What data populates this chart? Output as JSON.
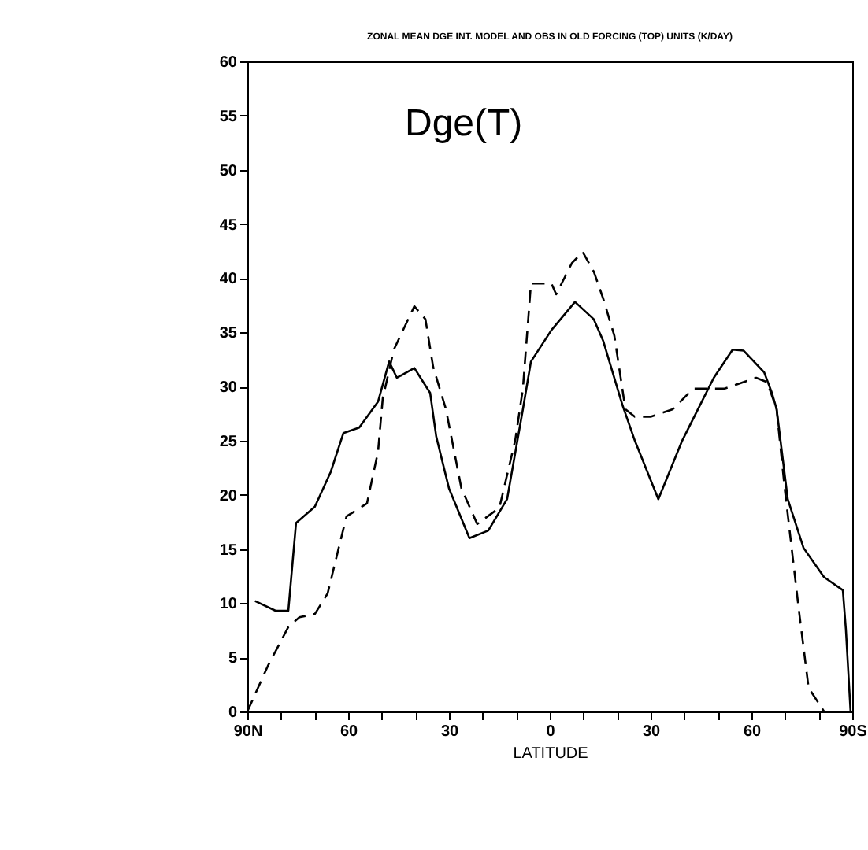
{
  "chart_data": {
    "type": "line",
    "title": "ZONAL MEAN DGE INT. MODEL AND OBS IN OLD FORCING (TOP) UNITS (K/DAY)",
    "xlabel": "LATITUDE",
    "annotations": [
      "Dge(T)"
    ],
    "xlim": [
      -90,
      90
    ],
    "ylim": [
      0,
      60
    ],
    "xticks": [
      {
        "value": -90,
        "label": "90N"
      },
      {
        "value": -80,
        "label": null
      },
      {
        "value": -70,
        "label": null
      },
      {
        "value": -60,
        "label": "60"
      },
      {
        "value": -50,
        "label": null
      },
      {
        "value": -40,
        "label": null
      },
      {
        "value": -30,
        "label": "30"
      },
      {
        "value": -20,
        "label": null
      },
      {
        "value": -10,
        "label": null
      },
      0,
      {
        "value": 10,
        "label": null
      },
      {
        "value": 20,
        "label": null
      },
      {
        "value": 30,
        "label": "30"
      },
      {
        "value": 40,
        "label": null
      },
      {
        "value": 50,
        "label": null
      },
      {
        "value": 60,
        "label": "60"
      },
      {
        "value": 70,
        "label": null
      },
      {
        "value": 80,
        "label": null
      },
      {
        "value": 90,
        "label": "90S"
      }
    ],
    "yticks": [
      0,
      5,
      10,
      15,
      20,
      25,
      30,
      35,
      40,
      45,
      50,
      55,
      60
    ],
    "grid": false,
    "series": [
      {
        "color": "#000000",
        "line_style": "solid",
        "x": [
          -87.7,
          -81.6,
          -77.8,
          -75.5,
          -69.9,
          -65.2,
          -61.4,
          -56.7,
          -51.1,
          -47.8,
          -45.5,
          -40.3,
          -35.6,
          -33.8,
          -30.0,
          -23.9,
          -18.3,
          -12.7,
          -8.0,
          -5.6,
          0.5,
          7.5,
          13.1,
          15.9,
          21.6,
          25.3,
          32.3,
          39.4,
          44.1,
          48.8,
          54.4,
          57.7,
          63.8,
          66.1,
          67.5,
          70.8,
          75.5,
          81.6,
          87.2,
          88.1,
          89.5
        ],
        "values": [
          10.2,
          9.3,
          9.3,
          17.4,
          18.9,
          22.1,
          25.7,
          26.2,
          28.6,
          32.3,
          30.8,
          31.7,
          29.4,
          25.4,
          20.6,
          16.0,
          16.7,
          19.6,
          27.9,
          32.3,
          35.2,
          37.8,
          36.2,
          34.2,
          28.3,
          25.0,
          19.6,
          25.0,
          27.9,
          30.8,
          33.4,
          33.3,
          31.3,
          29.4,
          27.9,
          19.6,
          15.1,
          12.4,
          11.2,
          7.6,
          0
        ]
      },
      {
        "color": "#000000",
        "line_style": "dashed",
        "x": [
          -90,
          -83.9,
          -77.8,
          -74.5,
          -69.9,
          -66.1,
          -62.8,
          -60.5,
          -54.4,
          -51.1,
          -49.7,
          -46.4,
          -40.3,
          -37.0,
          -34.7,
          -30.9,
          -26.3,
          -21.6,
          -15.0,
          -10.3,
          -8.0,
          -5.6,
          0.5,
          1.9,
          6.6,
          9.8,
          13.1,
          15.9,
          19.2,
          22.5,
          25.3,
          30.0,
          36.6,
          42.7,
          52.0,
          61.4,
          64.7,
          67.5,
          69.9,
          74.1,
          77.0,
          81.6
        ],
        "values": [
          0,
          4.2,
          7.8,
          8.7,
          9.0,
          10.9,
          15.1,
          18.0,
          19.2,
          24.0,
          28.9,
          33.4,
          37.4,
          36.2,
          31.8,
          27.9,
          20.6,
          17.3,
          18.8,
          25.0,
          29.8,
          39.5,
          39.5,
          38.5,
          41.4,
          42.4,
          40.6,
          38.1,
          34.7,
          27.9,
          27.2,
          27.2,
          27.9,
          29.8,
          29.8,
          30.8,
          30.4,
          27.9,
          20.6,
          9.4,
          2.2,
          0
        ]
      }
    ]
  }
}
